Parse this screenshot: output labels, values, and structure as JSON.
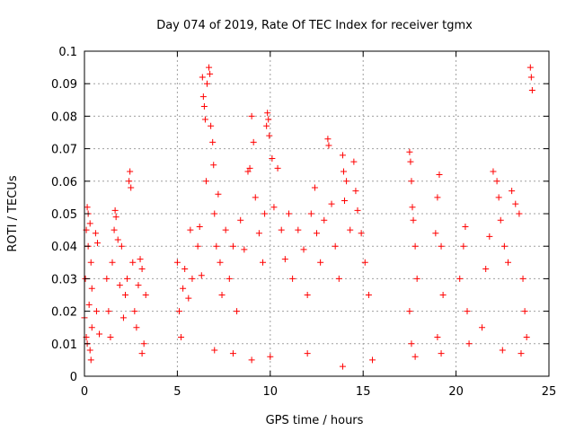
{
  "chart_data": {
    "type": "scatter",
    "title": "Day 074 of 2019, Rate Of TEC Index for receiver tgmx",
    "xlabel": "GPS time / hours",
    "ylabel": "ROTI / TECUs",
    "xlim": [
      0,
      25
    ],
    "ylim": [
      0,
      0.1
    ],
    "xticks": [
      0,
      5,
      10,
      15,
      20,
      25
    ],
    "yticks": [
      0,
      0.01,
      0.02,
      0.03,
      0.04,
      0.05,
      0.06,
      0.07,
      0.08,
      0.09,
      0.1
    ],
    "grid": true,
    "marker": "+",
    "color": "#ff0000",
    "series": [
      {
        "name": "ROTI",
        "points": [
          [
            0.0,
            0.018
          ],
          [
            0.05,
            0.03
          ],
          [
            0.1,
            0.012
          ],
          [
            0.1,
            0.045
          ],
          [
            0.15,
            0.052
          ],
          [
            0.2,
            0.04
          ],
          [
            0.25,
            0.022
          ],
          [
            0.3,
            0.008
          ],
          [
            0.35,
            0.035
          ],
          [
            0.4,
            0.015
          ],
          [
            0.2,
            0.05
          ],
          [
            0.3,
            0.047
          ],
          [
            0.4,
            0.027
          ],
          [
            0.35,
            0.005
          ],
          [
            0.15,
            0.01
          ],
          [
            0.6,
            0.044
          ],
          [
            0.7,
            0.041
          ],
          [
            0.65,
            0.02
          ],
          [
            0.8,
            0.013
          ],
          [
            1.2,
            0.03
          ],
          [
            1.3,
            0.02
          ],
          [
            1.4,
            0.012
          ],
          [
            1.5,
            0.035
          ],
          [
            1.6,
            0.045
          ],
          [
            1.65,
            0.051
          ],
          [
            1.7,
            0.049
          ],
          [
            1.8,
            0.042
          ],
          [
            1.9,
            0.028
          ],
          [
            2.0,
            0.04
          ],
          [
            2.1,
            0.018
          ],
          [
            2.2,
            0.025
          ],
          [
            2.3,
            0.03
          ],
          [
            2.4,
            0.06
          ],
          [
            2.45,
            0.063
          ],
          [
            2.5,
            0.058
          ],
          [
            2.6,
            0.035
          ],
          [
            2.7,
            0.02
          ],
          [
            2.8,
            0.015
          ],
          [
            2.9,
            0.028
          ],
          [
            3.0,
            0.036
          ],
          [
            3.1,
            0.033
          ],
          [
            3.2,
            0.01
          ],
          [
            3.3,
            0.025
          ],
          [
            3.1,
            0.007
          ],
          [
            5.0,
            0.035
          ],
          [
            5.1,
            0.02
          ],
          [
            5.2,
            0.012
          ],
          [
            5.3,
            0.027
          ],
          [
            5.4,
            0.033
          ],
          [
            5.6,
            0.024
          ],
          [
            5.7,
            0.045
          ],
          [
            5.8,
            0.03
          ],
          [
            6.1,
            0.04
          ],
          [
            6.2,
            0.046
          ],
          [
            6.3,
            0.031
          ],
          [
            6.35,
            0.092
          ],
          [
            6.4,
            0.086
          ],
          [
            6.45,
            0.083
          ],
          [
            6.5,
            0.079
          ],
          [
            6.55,
            0.06
          ],
          [
            6.6,
            0.09
          ],
          [
            6.7,
            0.095
          ],
          [
            6.75,
            0.093
          ],
          [
            6.8,
            0.077
          ],
          [
            6.9,
            0.072
          ],
          [
            6.95,
            0.065
          ],
          [
            7.0,
            0.05
          ],
          [
            7.1,
            0.04
          ],
          [
            7.2,
            0.056
          ],
          [
            7.3,
            0.035
          ],
          [
            7.4,
            0.025
          ],
          [
            7.6,
            0.045
          ],
          [
            7.8,
            0.03
          ],
          [
            8.0,
            0.04
          ],
          [
            8.2,
            0.02
          ],
          [
            8.4,
            0.048
          ],
          [
            8.6,
            0.039
          ],
          [
            8.8,
            0.063
          ],
          [
            8.9,
            0.064
          ],
          [
            9.0,
            0.08
          ],
          [
            9.1,
            0.072
          ],
          [
            9.2,
            0.055
          ],
          [
            9.4,
            0.044
          ],
          [
            9.6,
            0.035
          ],
          [
            9.7,
            0.05
          ],
          [
            9.8,
            0.077
          ],
          [
            9.85,
            0.081
          ],
          [
            9.9,
            0.079
          ],
          [
            9.95,
            0.074
          ],
          [
            10.1,
            0.067
          ],
          [
            10.2,
            0.052
          ],
          [
            10.4,
            0.064
          ],
          [
            10.6,
            0.045
          ],
          [
            10.8,
            0.036
          ],
          [
            11.0,
            0.05
          ],
          [
            11.2,
            0.03
          ],
          [
            11.5,
            0.045
          ],
          [
            11.8,
            0.039
          ],
          [
            12.0,
            0.025
          ],
          [
            12.2,
            0.05
          ],
          [
            12.4,
            0.058
          ],
          [
            12.5,
            0.044
          ],
          [
            12.7,
            0.035
          ],
          [
            12.9,
            0.048
          ],
          [
            13.1,
            0.073
          ],
          [
            13.15,
            0.071
          ],
          [
            13.3,
            0.053
          ],
          [
            13.5,
            0.04
          ],
          [
            13.7,
            0.03
          ],
          [
            13.9,
            0.068
          ],
          [
            13.95,
            0.063
          ],
          [
            14.0,
            0.054
          ],
          [
            14.1,
            0.06
          ],
          [
            14.3,
            0.045
          ],
          [
            14.5,
            0.066
          ],
          [
            14.6,
            0.057
          ],
          [
            14.7,
            0.051
          ],
          [
            14.9,
            0.044
          ],
          [
            15.1,
            0.035
          ],
          [
            15.3,
            0.025
          ],
          [
            15.5,
            0.005
          ],
          [
            13.9,
            0.003
          ],
          [
            7.0,
            0.008
          ],
          [
            10.0,
            0.006
          ],
          [
            12.0,
            0.007
          ],
          [
            9.0,
            0.005
          ],
          [
            8.0,
            0.007
          ],
          [
            17.5,
            0.069
          ],
          [
            17.55,
            0.066
          ],
          [
            17.6,
            0.06
          ],
          [
            17.65,
            0.052
          ],
          [
            17.7,
            0.048
          ],
          [
            17.8,
            0.04
          ],
          [
            17.9,
            0.03
          ],
          [
            17.5,
            0.02
          ],
          [
            17.6,
            0.01
          ],
          [
            17.8,
            0.006
          ],
          [
            18.9,
            0.044
          ],
          [
            19.0,
            0.055
          ],
          [
            19.1,
            0.062
          ],
          [
            19.2,
            0.04
          ],
          [
            19.3,
            0.025
          ],
          [
            19.0,
            0.012
          ],
          [
            19.2,
            0.007
          ],
          [
            20.2,
            0.03
          ],
          [
            20.4,
            0.04
          ],
          [
            20.5,
            0.046
          ],
          [
            20.6,
            0.02
          ],
          [
            20.7,
            0.01
          ],
          [
            21.4,
            0.015
          ],
          [
            21.6,
            0.033
          ],
          [
            21.8,
            0.043
          ],
          [
            22.0,
            0.063
          ],
          [
            22.2,
            0.06
          ],
          [
            22.3,
            0.055
          ],
          [
            22.4,
            0.048
          ],
          [
            22.6,
            0.04
          ],
          [
            22.8,
            0.035
          ],
          [
            23.0,
            0.057
          ],
          [
            23.2,
            0.053
          ],
          [
            23.4,
            0.05
          ],
          [
            23.6,
            0.03
          ],
          [
            23.7,
            0.02
          ],
          [
            23.8,
            0.012
          ],
          [
            24.0,
            0.095
          ],
          [
            24.05,
            0.092
          ],
          [
            24.1,
            0.088
          ],
          [
            23.5,
            0.007
          ],
          [
            22.5,
            0.008
          ]
        ]
      }
    ]
  }
}
